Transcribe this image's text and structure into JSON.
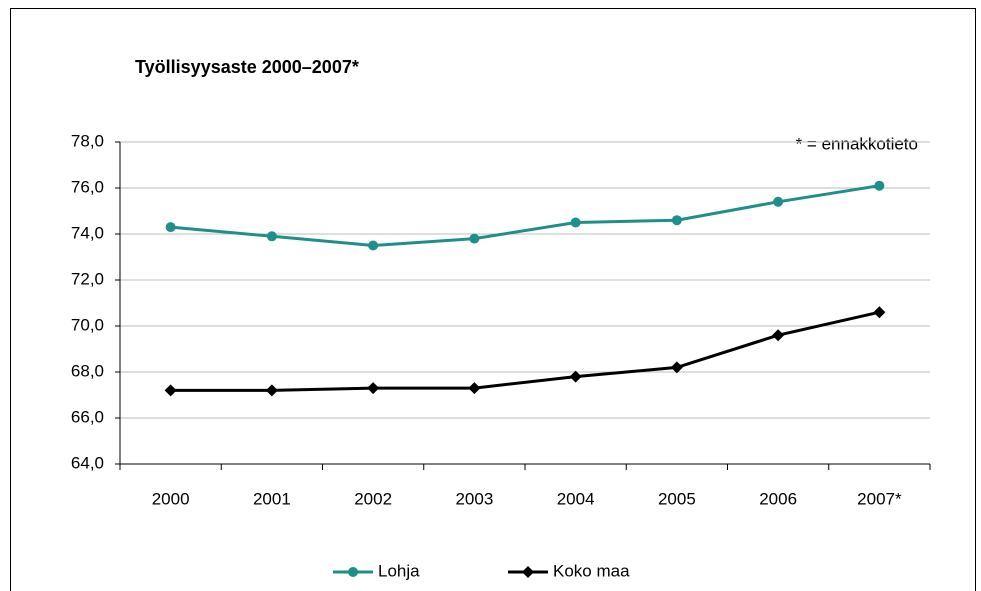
{
  "chart_data": {
    "type": "line",
    "title": "Työllisyysaste 2000–2007*",
    "annotation": "* = ennakkotieto",
    "categories": [
      "2000",
      "2001",
      "2002",
      "2003",
      "2004",
      "2005",
      "2006",
      "2007*"
    ],
    "series": [
      {
        "name": "Lohja",
        "color": "#1f8f8c",
        "marker": "circle",
        "values": [
          74.3,
          73.9,
          73.5,
          73.8,
          74.5,
          74.6,
          75.4,
          76.1
        ]
      },
      {
        "name": "Koko maa",
        "color": "#000000",
        "marker": "diamond",
        "values": [
          67.2,
          67.2,
          67.3,
          67.3,
          67.8,
          68.2,
          69.6,
          70.6
        ]
      }
    ],
    "ylim": [
      64,
      78
    ],
    "yticks": [
      {
        "value": 64,
        "label": "64,0"
      },
      {
        "value": 66,
        "label": "66,0"
      },
      {
        "value": 68,
        "label": "68,0"
      },
      {
        "value": 70,
        "label": "70,0"
      },
      {
        "value": 72,
        "label": "72,0"
      },
      {
        "value": 74,
        "label": "74,0"
      },
      {
        "value": 76,
        "label": "76,0"
      },
      {
        "value": 78,
        "label": "78,0"
      }
    ],
    "grid": true,
    "legend": "bottom"
  }
}
